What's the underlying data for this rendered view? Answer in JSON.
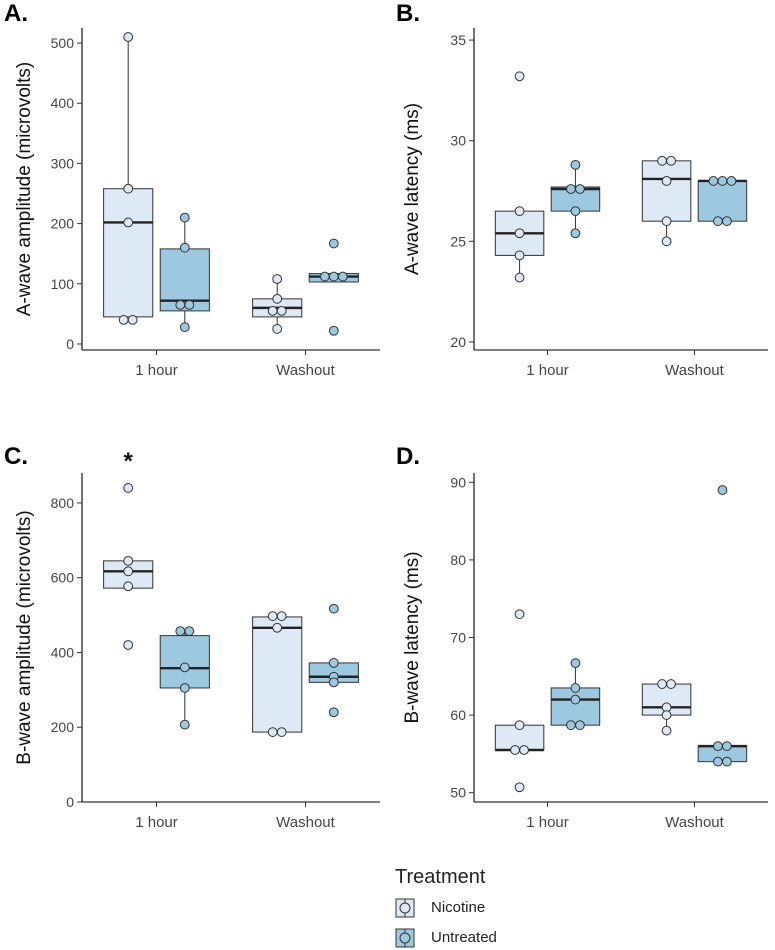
{
  "figure": {
    "treatments": [
      {
        "name": "Nicotine",
        "fill": "#dde9f5"
      },
      {
        "name": "Untreated",
        "fill": "#9dc9e0"
      }
    ],
    "legend_title": "Treatment"
  },
  "chart_data": [
    {
      "panel": "A.",
      "type": "boxplot",
      "ylabel": "A-wave amplitude (microvolts)",
      "categories": [
        "1 hour",
        "Washout"
      ],
      "ylim": [
        -10,
        525
      ],
      "yticks": [
        0,
        100,
        200,
        300,
        400,
        500
      ],
      "annotation": "",
      "groups": [
        {
          "category": "1 hour",
          "treatment": "Nicotine",
          "q1": 45,
          "median": 202,
          "q3": 258,
          "whisker_low": 45,
          "whisker_high": 510,
          "points": [
            510,
            258,
            202,
            40,
            40
          ]
        },
        {
          "category": "1 hour",
          "treatment": "Untreated",
          "q1": 55,
          "median": 72,
          "q3": 158,
          "whisker_low": 28,
          "whisker_high": 210,
          "points": [
            210,
            160,
            65,
            65,
            28
          ]
        },
        {
          "category": "Washout",
          "treatment": "Nicotine",
          "q1": 45,
          "median": 60,
          "q3": 75,
          "whisker_low": 25,
          "whisker_high": 108,
          "points": [
            108,
            75,
            55,
            55,
            25
          ]
        },
        {
          "category": "Washout",
          "treatment": "Untreated",
          "q1": 103,
          "median": 112,
          "q3": 117,
          "whisker_low": 103,
          "whisker_high": 117,
          "points": [
            167,
            112,
            112,
            112,
            22
          ]
        }
      ]
    },
    {
      "panel": "B.",
      "type": "boxplot",
      "ylabel": "A-wave latency (ms)",
      "categories": [
        "1 hour",
        "Washout"
      ],
      "ylim": [
        19.6,
        35.6
      ],
      "yticks": [
        20,
        25,
        30,
        35
      ],
      "annotation": "",
      "groups": [
        {
          "category": "1 hour",
          "treatment": "Nicotine",
          "q1": 24.3,
          "median": 25.4,
          "q3": 26.5,
          "whisker_low": 23.2,
          "whisker_high": 26.5,
          "points": [
            33.2,
            26.5,
            25.4,
            24.3,
            23.2
          ]
        },
        {
          "category": "1 hour",
          "treatment": "Untreated",
          "q1": 26.5,
          "median": 27.6,
          "q3": 27.7,
          "whisker_low": 25.4,
          "whisker_high": 28.8,
          "points": [
            28.8,
            27.6,
            27.6,
            26.5,
            25.4
          ]
        },
        {
          "category": "Washout",
          "treatment": "Nicotine",
          "q1": 26.0,
          "median": 28.1,
          "q3": 29.0,
          "whisker_low": 25.0,
          "whisker_high": 29.0,
          "points": [
            29.0,
            29.0,
            28.0,
            26.0,
            25.0
          ]
        },
        {
          "category": "Washout",
          "treatment": "Untreated",
          "q1": 26.0,
          "median": 28.0,
          "q3": 28.0,
          "whisker_low": 26.0,
          "whisker_high": 28.0,
          "points": [
            28.0,
            28.0,
            28.0,
            26.0,
            26.0
          ]
        }
      ]
    },
    {
      "panel": "C.",
      "type": "boxplot",
      "ylabel": "B-wave amplitude (microvolts)",
      "categories": [
        "1 hour",
        "Washout"
      ],
      "ylim": [
        0,
        880
      ],
      "yticks": [
        0,
        200,
        400,
        600,
        800
      ],
      "annotation": "*",
      "groups": [
        {
          "category": "1 hour",
          "treatment": "Nicotine",
          "q1": 572,
          "median": 617,
          "q3": 645,
          "whisker_low": 572,
          "whisker_high": 645,
          "points": [
            840,
            645,
            617,
            577,
            420
          ]
        },
        {
          "category": "1 hour",
          "treatment": "Untreated",
          "q1": 305,
          "median": 358,
          "q3": 445,
          "whisker_low": 207,
          "whisker_high": 457,
          "points": [
            457,
            457,
            360,
            305,
            207
          ]
        },
        {
          "category": "Washout",
          "treatment": "Nicotine",
          "q1": 187,
          "median": 466,
          "q3": 495,
          "whisker_low": 187,
          "whisker_high": 495,
          "points": [
            497,
            497,
            466,
            187,
            187
          ]
        },
        {
          "category": "Washout",
          "treatment": "Untreated",
          "q1": 320,
          "median": 335,
          "q3": 372,
          "whisker_low": 320,
          "whisker_high": 372,
          "points": [
            517,
            372,
            335,
            320,
            240
          ]
        }
      ]
    },
    {
      "panel": "D.",
      "type": "boxplot",
      "ylabel": "B-wave latency (ms)",
      "categories": [
        "1 hour",
        "Washout"
      ],
      "ylim": [
        48.8,
        91.2
      ],
      "yticks": [
        50,
        60,
        70,
        80,
        90
      ],
      "annotation": "",
      "groups": [
        {
          "category": "1 hour",
          "treatment": "Nicotine",
          "q1": 55.5,
          "median": 55.5,
          "q3": 58.7,
          "whisker_low": 55.5,
          "whisker_high": 58.7,
          "points": [
            73.0,
            58.7,
            55.5,
            55.5,
            50.7
          ]
        },
        {
          "category": "1 hour",
          "treatment": "Untreated",
          "q1": 58.7,
          "median": 62.0,
          "q3": 63.5,
          "whisker_low": 58.7,
          "whisker_high": 66.7,
          "points": [
            66.7,
            63.5,
            62.0,
            58.7,
            58.7
          ]
        },
        {
          "category": "Washout",
          "treatment": "Nicotine",
          "q1": 60.0,
          "median": 61.0,
          "q3": 64.0,
          "whisker_low": 58.0,
          "whisker_high": 64.0,
          "points": [
            64.0,
            64.0,
            61.0,
            60.0,
            58.0
          ]
        },
        {
          "category": "Washout",
          "treatment": "Untreated",
          "q1": 54.0,
          "median": 56.0,
          "q3": 56.0,
          "whisker_low": 54.0,
          "whisker_high": 56.0,
          "points": [
            89.0,
            56.0,
            56.0,
            54.0,
            54.0
          ]
        }
      ]
    }
  ]
}
